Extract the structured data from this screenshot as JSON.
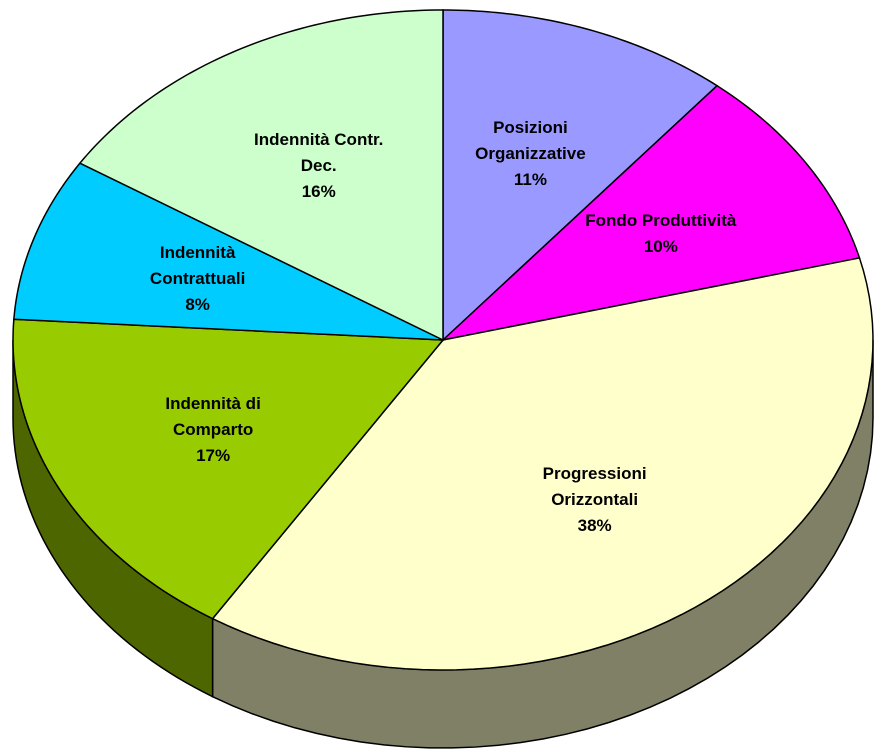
{
  "chart_data": {
    "type": "pie",
    "categories": [
      "Posizioni Organizzative",
      "Fondo Produttività",
      "Progressioni Orizzontali",
      "Indennità di Comparto",
      "Indennità Contrattuali",
      "Indennità Contr. Dec."
    ],
    "values": [
      11,
      10,
      38,
      17,
      8,
      16
    ],
    "value_labels": [
      "11%",
      "10%",
      "38%",
      "17%",
      "8%",
      "16%"
    ],
    "colors": [
      "#9999ff",
      "#ff00ff",
      "#ffffcc",
      "#99cc00",
      "#00ccff",
      "#ccffcc"
    ]
  }
}
